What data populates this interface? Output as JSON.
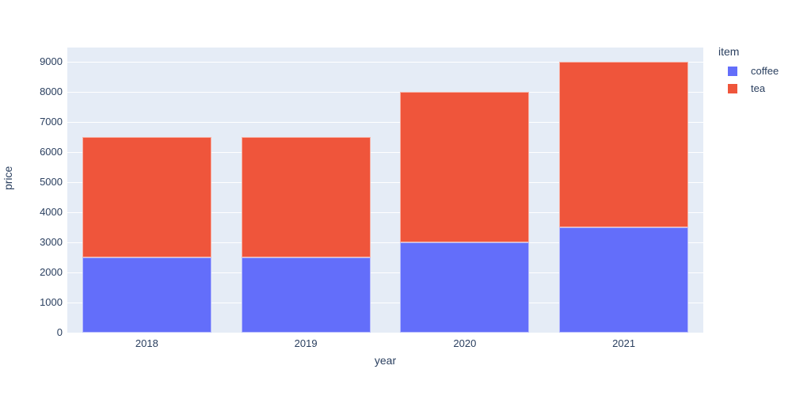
{
  "chart_data": {
    "type": "bar",
    "stacked": true,
    "title": "",
    "xlabel": "year",
    "ylabel": "price",
    "legend_title": "item",
    "legend_position": "top-right-outside",
    "categories": [
      "2018",
      "2019",
      "2020",
      "2021"
    ],
    "series": [
      {
        "name": "coffee",
        "color": "#636EFA",
        "values": [
          2500,
          2500,
          3000,
          3500
        ]
      },
      {
        "name": "tea",
        "color": "#EF553B",
        "values": [
          4000,
          4000,
          5000,
          5500
        ]
      }
    ],
    "stack_totals": [
      6500,
      6500,
      8000,
      9000
    ],
    "yticks": [
      0,
      1000,
      2000,
      3000,
      4000,
      5000,
      6000,
      7000,
      8000,
      9000
    ],
    "ylim": [
      0,
      9474
    ],
    "grid": true,
    "colors": {
      "plot_background": "#E5ECF6",
      "gridline": "#FFFFFF",
      "text": "#2a3f5f",
      "figure_background": "#FFFFFF"
    }
  }
}
